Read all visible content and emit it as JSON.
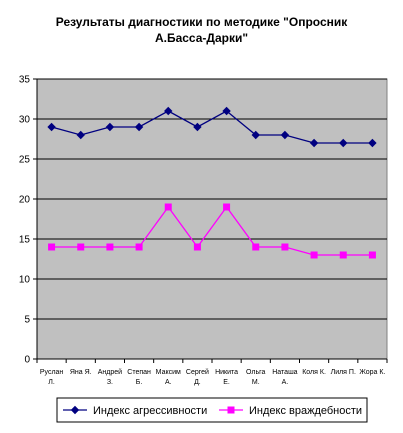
{
  "chart_data": {
    "type": "line",
    "title_lines": [
      "Результаты диагностики по методике \"Опросник",
      "А.Басса-Дарки\""
    ],
    "categories": [
      [
        "Руслан",
        "Л."
      ],
      [
        "Яна Я."
      ],
      [
        "Андрей",
        "З."
      ],
      [
        "Степан",
        "Б."
      ],
      [
        "Максим",
        "А."
      ],
      [
        "Сергей",
        "Д."
      ],
      [
        "Никита",
        "Е."
      ],
      [
        "Ольга",
        "М."
      ],
      [
        "Наташа",
        "А."
      ],
      [
        "Коля К."
      ],
      [
        "Лиля П."
      ],
      [
        "Жора К."
      ]
    ],
    "series": [
      {
        "name": "Индекс агрессивности",
        "color": "#000080",
        "marker": "diamond",
        "values": [
          29,
          28,
          29,
          29,
          31,
          29,
          31,
          28,
          28,
          27,
          27,
          27
        ]
      },
      {
        "name": "Индекс враждебности",
        "color": "#FF00FF",
        "marker": "square",
        "values": [
          14,
          14,
          14,
          14,
          19,
          14,
          19,
          14,
          14,
          13,
          13,
          13
        ]
      }
    ],
    "ylim": [
      0,
      35
    ],
    "yticks": [
      0,
      5,
      10,
      15,
      20,
      25,
      30,
      35
    ],
    "grid": true,
    "plot_background": "#C0C0C0",
    "legend_position": "bottom"
  }
}
